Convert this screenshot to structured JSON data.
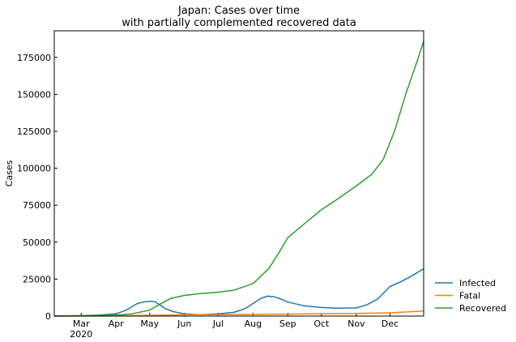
{
  "chart_data": {
    "type": "line",
    "title": "Japan: Cases over time",
    "subtitle": "with partially complemented recovered data",
    "xlabel": "",
    "ylabel": "Cases",
    "xlim": [
      "2020-02-06",
      "2020-12-31"
    ],
    "ylim": [
      0,
      193000
    ],
    "yticks": [
      0,
      25000,
      50000,
      75000,
      100000,
      125000,
      150000,
      175000
    ],
    "xticks": [
      {
        "date": "2020-03-01",
        "label": "Mar",
        "sublabel": "2020"
      },
      {
        "date": "2020-04-01",
        "label": "Apr"
      },
      {
        "date": "2020-05-01",
        "label": "May"
      },
      {
        "date": "2020-06-01",
        "label": "Jun"
      },
      {
        "date": "2020-07-01",
        "label": "Jul"
      },
      {
        "date": "2020-08-01",
        "label": "Aug"
      },
      {
        "date": "2020-09-01",
        "label": "Sep"
      },
      {
        "date": "2020-10-01",
        "label": "Oct"
      },
      {
        "date": "2020-11-01",
        "label": "Nov"
      },
      {
        "date": "2020-12-01",
        "label": "Dec"
      }
    ],
    "grid": false,
    "legend_position": "outside-bottom-right",
    "series": [
      {
        "name": "Infected",
        "color": "#1f77b4",
        "points": [
          [
            "2020-02-06",
            0
          ],
          [
            "2020-03-01",
            300
          ],
          [
            "2020-03-15",
            600
          ],
          [
            "2020-04-01",
            1500
          ],
          [
            "2020-04-10",
            4000
          ],
          [
            "2020-04-20",
            8500
          ],
          [
            "2020-04-25",
            9500
          ],
          [
            "2020-05-01",
            10000
          ],
          [
            "2020-05-06",
            9600
          ],
          [
            "2020-05-10",
            7500
          ],
          [
            "2020-05-15",
            5000
          ],
          [
            "2020-05-22",
            3000
          ],
          [
            "2020-06-01",
            1500
          ],
          [
            "2020-06-15",
            900
          ],
          [
            "2020-07-01",
            1500
          ],
          [
            "2020-07-15",
            2500
          ],
          [
            "2020-07-25",
            5000
          ],
          [
            "2020-08-01",
            8500
          ],
          [
            "2020-08-08",
            12000
          ],
          [
            "2020-08-14",
            13500
          ],
          [
            "2020-08-20",
            13000
          ],
          [
            "2020-08-26",
            11500
          ],
          [
            "2020-09-01",
            9500
          ],
          [
            "2020-09-15",
            7000
          ],
          [
            "2020-10-01",
            5800
          ],
          [
            "2020-10-15",
            5400
          ],
          [
            "2020-11-01",
            5500
          ],
          [
            "2020-11-10",
            7500
          ],
          [
            "2020-11-20",
            11500
          ],
          [
            "2020-12-01",
            20000
          ],
          [
            "2020-12-10",
            23000
          ],
          [
            "2020-12-20",
            27000
          ],
          [
            "2020-12-31",
            32000
          ]
        ]
      },
      {
        "name": "Fatal",
        "color": "#ff7f0e",
        "points": [
          [
            "2020-02-06",
            0
          ],
          [
            "2020-04-01",
            100
          ],
          [
            "2020-05-01",
            500
          ],
          [
            "2020-06-01",
            900
          ],
          [
            "2020-07-01",
            1000
          ],
          [
            "2020-08-01",
            1100
          ],
          [
            "2020-09-01",
            1300
          ],
          [
            "2020-10-01",
            1600
          ],
          [
            "2020-11-01",
            1800
          ],
          [
            "2020-12-01",
            2200
          ],
          [
            "2020-12-31",
            3400
          ]
        ]
      },
      {
        "name": "Recovered",
        "color": "#2ca02c",
        "points": [
          [
            "2020-02-06",
            0
          ],
          [
            "2020-03-01",
            200
          ],
          [
            "2020-04-01",
            600
          ],
          [
            "2020-04-15",
            1500
          ],
          [
            "2020-05-01",
            4000
          ],
          [
            "2020-05-10",
            8000
          ],
          [
            "2020-05-20",
            12000
          ],
          [
            "2020-06-01",
            14000
          ],
          [
            "2020-06-15",
            15200
          ],
          [
            "2020-07-01",
            16200
          ],
          [
            "2020-07-15",
            17500
          ],
          [
            "2020-08-01",
            22000
          ],
          [
            "2020-08-15",
            32000
          ],
          [
            "2020-08-25",
            44000
          ],
          [
            "2020-09-01",
            53000
          ],
          [
            "2020-09-15",
            62000
          ],
          [
            "2020-10-01",
            72000
          ],
          [
            "2020-10-15",
            79000
          ],
          [
            "2020-11-01",
            88000
          ],
          [
            "2020-11-15",
            96000
          ],
          [
            "2020-11-25",
            106000
          ],
          [
            "2020-12-05",
            125000
          ],
          [
            "2020-12-15",
            150000
          ],
          [
            "2020-12-25",
            172000
          ],
          [
            "2020-12-31",
            186000
          ]
        ]
      }
    ]
  }
}
